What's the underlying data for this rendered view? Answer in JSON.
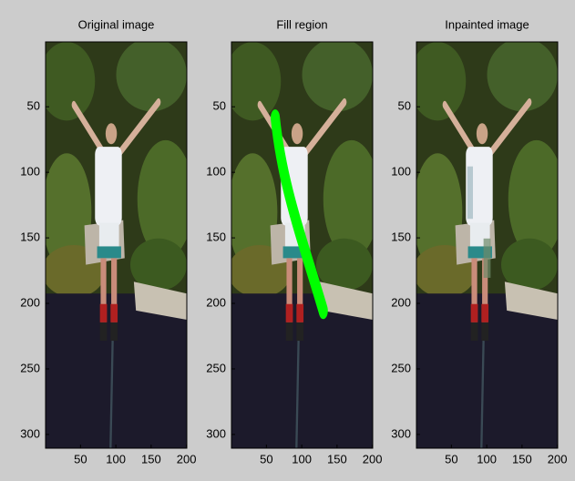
{
  "chart_data": [
    {
      "type": "image",
      "title": "Original image",
      "xlim": [
        0.5,
        200.5
      ],
      "ylim": [
        0.5,
        310.5
      ],
      "y_reversed": true,
      "xticks": [
        50,
        100,
        150,
        200
      ],
      "yticks": [
        50,
        100,
        150,
        200,
        250,
        300
      ]
    },
    {
      "type": "image",
      "title": "Fill region",
      "xlim": [
        0.5,
        200.5
      ],
      "ylim": [
        0.5,
        310.5
      ],
      "y_reversed": true,
      "xticks": [
        50,
        100,
        150,
        200
      ],
      "yticks": [
        50,
        100,
        150,
        200,
        250,
        300
      ]
    },
    {
      "type": "image",
      "title": "Inpainted image",
      "xlim": [
        0.5,
        200.5
      ],
      "ylim": [
        0.5,
        310.5
      ],
      "y_reversed": true,
      "xticks": [
        50,
        100,
        150,
        200
      ],
      "yticks": [
        50,
        100,
        150,
        200,
        250,
        300
      ]
    }
  ]
}
